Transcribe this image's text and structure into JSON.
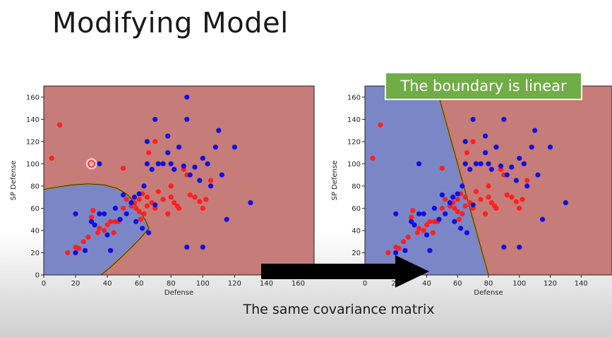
{
  "slide": {
    "title": "Modifying Model",
    "callout": "The boundary is linear",
    "caption": "The same covariance matrix"
  },
  "colors": {
    "region_red": "#c67c78",
    "region_blue": "#7b86c6",
    "point_red": "#ff2020",
    "point_blue": "#1010e0",
    "callout_green": "#70ad47"
  },
  "icons": [
    "right-arrow-icon"
  ],
  "chart_data": [
    {
      "type": "scatter",
      "xlabel": "Defense",
      "ylabel": "SP Defense",
      "xlim": [
        0,
        170
      ],
      "ylim": [
        0,
        170
      ],
      "x_ticks": [
        "0",
        "20",
        "40",
        "60",
        "80",
        "100",
        "120",
        "140",
        "160"
      ],
      "y_ticks": [
        "0",
        "20",
        "40",
        "60",
        "80",
        "100",
        "120",
        "140",
        "160"
      ],
      "decision_boundary": {
        "shape": "curved",
        "points": [
          [
            0,
            77
          ],
          [
            8,
            79
          ],
          [
            18,
            81
          ],
          [
            28,
            82
          ],
          [
            38,
            81
          ],
          [
            46,
            78
          ],
          [
            52,
            73
          ],
          [
            56,
            67
          ],
          [
            60,
            58
          ],
          [
            64,
            49
          ],
          [
            66,
            42
          ],
          [
            62,
            35
          ],
          [
            56,
            26
          ],
          [
            48,
            15
          ],
          [
            42,
            7
          ],
          [
            36,
            0
          ]
        ],
        "inside_class": "blue",
        "outside_class": "red"
      },
      "series": [
        {
          "color": "red",
          "points": [
            [
              5,
              105
            ],
            [
              10,
              135
            ],
            [
              15,
              20
            ],
            [
              20,
              25
            ],
            [
              22,
              24
            ],
            [
              25,
              30
            ],
            [
              28,
              34
            ],
            [
              30,
              52
            ],
            [
              31,
              58
            ],
            [
              34,
              38
            ],
            [
              35,
              42
            ],
            [
              38,
              40
            ],
            [
              40,
              45
            ],
            [
              42,
              48
            ],
            [
              44,
              38
            ],
            [
              45,
              48
            ],
            [
              47,
              48
            ],
            [
              50,
              96
            ],
            [
              50,
              60
            ],
            [
              52,
              68
            ],
            [
              55,
              62
            ],
            [
              57,
              65
            ],
            [
              58,
              60
            ],
            [
              60,
              68
            ],
            [
              60,
              57
            ],
            [
              61,
              50
            ],
            [
              62,
              73
            ],
            [
              63,
              55
            ],
            [
              65,
              70
            ],
            [
              65,
              62
            ],
            [
              66,
              110
            ],
            [
              68,
              65
            ],
            [
              70,
              120
            ],
            [
              70,
              60
            ],
            [
              72,
              75
            ],
            [
              75,
              68
            ],
            [
              78,
              55
            ],
            [
              80,
              80
            ],
            [
              80,
              70
            ],
            [
              82,
              65
            ],
            [
              84,
              62
            ],
            [
              85,
              60
            ],
            [
              88,
              95
            ],
            [
              90,
              90
            ],
            [
              92,
              72
            ],
            [
              95,
              70
            ],
            [
              98,
              66
            ],
            [
              100,
              60
            ],
            [
              102,
              68
            ],
            [
              105,
              85
            ],
            [
              30,
              100
            ]
          ]
        },
        {
          "color": "blue",
          "points": [
            [
              20,
              20
            ],
            [
              20,
              55
            ],
            [
              26,
              22
            ],
            [
              30,
              48
            ],
            [
              32,
              45
            ],
            [
              35,
              55
            ],
            [
              38,
              55
            ],
            [
              40,
              36
            ],
            [
              42,
              22
            ],
            [
              45,
              60
            ],
            [
              48,
              50
            ],
            [
              50,
              72
            ],
            [
              52,
              55
            ],
            [
              55,
              65
            ],
            [
              57,
              70
            ],
            [
              58,
              48
            ],
            [
              60,
              73
            ],
            [
              62,
              42
            ],
            [
              63,
              80
            ],
            [
              65,
              120
            ],
            [
              65,
              100
            ],
            [
              66,
              38
            ],
            [
              68,
              95
            ],
            [
              70,
              140
            ],
            [
              70,
              63
            ],
            [
              72,
              100
            ],
            [
              75,
              100
            ],
            [
              78,
              110
            ],
            [
              78,
              125
            ],
            [
              80,
              100
            ],
            [
              82,
              95
            ],
            [
              85,
              115
            ],
            [
              88,
              98
            ],
            [
              90,
              160
            ],
            [
              90,
              140
            ],
            [
              90,
              25
            ],
            [
              92,
              90
            ],
            [
              95,
              97
            ],
            [
              98,
              85
            ],
            [
              100,
              105
            ],
            [
              100,
              25
            ],
            [
              103,
              100
            ],
            [
              105,
              80
            ],
            [
              108,
              115
            ],
            [
              110,
              130
            ],
            [
              112,
              90
            ],
            [
              115,
              50
            ],
            [
              120,
              115
            ],
            [
              130,
              65
            ],
            [
              35,
              100
            ]
          ]
        }
      ]
    },
    {
      "type": "scatter",
      "xlabel": "Defense",
      "ylabel": "SP Defense",
      "xlim": [
        0,
        160
      ],
      "ylim": [
        0,
        170
      ],
      "x_ticks": [
        "0",
        "20",
        "40",
        "60",
        "80",
        "100",
        "120",
        "140"
      ],
      "y_ticks": [
        "0",
        "20",
        "40",
        "60",
        "80",
        "100",
        "120",
        "140",
        "160"
      ],
      "decision_boundary": {
        "shape": "linear",
        "points": [
          [
            46,
            170
          ],
          [
            80,
            0
          ]
        ],
        "left_class": "blue",
        "right_class": "red"
      },
      "series": [
        {
          "color": "red",
          "points": [
            [
              5,
              105
            ],
            [
              10,
              135
            ],
            [
              15,
              20
            ],
            [
              20,
              25
            ],
            [
              22,
              24
            ],
            [
              25,
              30
            ],
            [
              28,
              34
            ],
            [
              30,
              52
            ],
            [
              31,
              58
            ],
            [
              34,
              38
            ],
            [
              35,
              42
            ],
            [
              38,
              40
            ],
            [
              40,
              45
            ],
            [
              42,
              48
            ],
            [
              44,
              38
            ],
            [
              45,
              48
            ],
            [
              47,
              48
            ],
            [
              50,
              96
            ],
            [
              50,
              60
            ],
            [
              52,
              68
            ],
            [
              55,
              62
            ],
            [
              57,
              65
            ],
            [
              58,
              60
            ],
            [
              60,
              68
            ],
            [
              60,
              57
            ],
            [
              61,
              50
            ],
            [
              62,
              73
            ],
            [
              63,
              55
            ],
            [
              65,
              70
            ],
            [
              65,
              62
            ],
            [
              66,
              110
            ],
            [
              68,
              65
            ],
            [
              70,
              120
            ],
            [
              70,
              60
            ],
            [
              72,
              75
            ],
            [
              75,
              68
            ],
            [
              78,
              55
            ],
            [
              80,
              80
            ],
            [
              80,
              70
            ],
            [
              82,
              65
            ],
            [
              84,
              62
            ],
            [
              85,
              60
            ],
            [
              88,
              95
            ],
            [
              90,
              90
            ],
            [
              92,
              72
            ],
            [
              95,
              70
            ],
            [
              98,
              66
            ],
            [
              100,
              60
            ],
            [
              102,
              68
            ],
            [
              105,
              85
            ]
          ]
        },
        {
          "color": "blue",
          "points": [
            [
              20,
              20
            ],
            [
              20,
              55
            ],
            [
              26,
              22
            ],
            [
              30,
              48
            ],
            [
              32,
              45
            ],
            [
              35,
              55
            ],
            [
              38,
              55
            ],
            [
              40,
              36
            ],
            [
              42,
              22
            ],
            [
              45,
              60
            ],
            [
              48,
              50
            ],
            [
              50,
              72
            ],
            [
              52,
              55
            ],
            [
              55,
              65
            ],
            [
              57,
              70
            ],
            [
              58,
              48
            ],
            [
              60,
              73
            ],
            [
              62,
              42
            ],
            [
              63,
              80
            ],
            [
              65,
              120
            ],
            [
              65,
              100
            ],
            [
              66,
              38
            ],
            [
              68,
              95
            ],
            [
              70,
              140
            ],
            [
              70,
              63
            ],
            [
              72,
              100
            ],
            [
              75,
              100
            ],
            [
              78,
              110
            ],
            [
              78,
              125
            ],
            [
              80,
              100
            ],
            [
              82,
              95
            ],
            [
              85,
              115
            ],
            [
              88,
              98
            ],
            [
              90,
              140
            ],
            [
              90,
              25
            ],
            [
              92,
              90
            ],
            [
              95,
              97
            ],
            [
              98,
              85
            ],
            [
              100,
              105
            ],
            [
              100,
              25
            ],
            [
              103,
              100
            ],
            [
              105,
              80
            ],
            [
              108,
              115
            ],
            [
              110,
              130
            ],
            [
              112,
              90
            ],
            [
              115,
              50
            ],
            [
              120,
              115
            ],
            [
              130,
              65
            ],
            [
              35,
              100
            ]
          ]
        }
      ]
    }
  ]
}
